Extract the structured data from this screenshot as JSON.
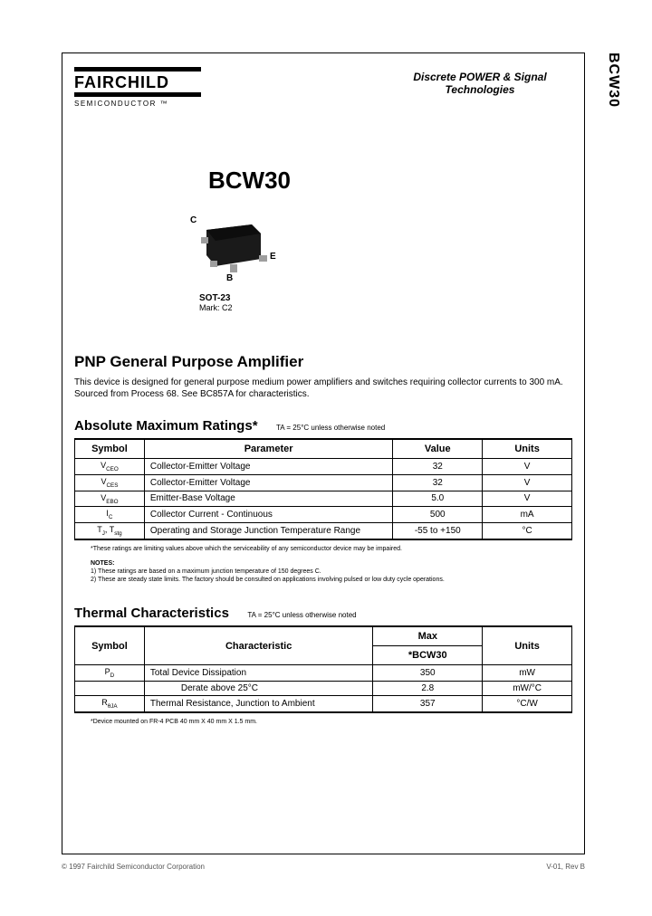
{
  "side_label": "BCW30",
  "logo": {
    "name": "FAIRCHILD",
    "sub": "SEMICONDUCTOR ™"
  },
  "header_right_line1": "Discrete POWER & Signal",
  "header_right_line2": "Technologies",
  "part_number": "BCW30",
  "package": {
    "pin_c": "C",
    "pin_e": "E",
    "pin_b": "B",
    "name": "SOT-23",
    "mark": "Mark: C2",
    "body_color": "#1a1a1a",
    "pin_color": "#9e9e9e"
  },
  "product_title": "PNP General Purpose Amplifier",
  "description": "This device is designed for general purpose medium power amplifiers and switches requiring collector currents to 300 mA. Sourced from Process 68. See BC857A for characteristics.",
  "amr": {
    "title": "Absolute Maximum Ratings*",
    "condition": "TA = 25°C unless otherwise noted",
    "headers": [
      "Symbol",
      "Parameter",
      "Value",
      "Units"
    ],
    "rows": [
      {
        "sym": "V<sub>CEO</sub>",
        "param": "Collector-Emitter Voltage",
        "val": "32",
        "units": "V"
      },
      {
        "sym": "V<sub>CES</sub>",
        "param": "Collector-Emitter Voltage",
        "val": "32",
        "units": "V"
      },
      {
        "sym": "V<sub>EBO</sub>",
        "param": "Emitter-Base Voltage",
        "val": "5.0",
        "units": "V"
      },
      {
        "sym": "I<sub>C</sub>",
        "param": "Collector Current - Continuous",
        "val": "500",
        "units": "mA"
      },
      {
        "sym": "T<sub>J</sub>, T<sub>stg</sub>",
        "param": "Operating and Storage Junction Temperature Range",
        "val": "-55 to +150",
        "units": "°C"
      }
    ],
    "footnote": "*These ratings are limiting values above which the serviceability of any semiconductor device may be impaired.",
    "notes_title": "NOTES:",
    "note1": "1) These ratings are based on a maximum junction temperature of 150 degrees C.",
    "note2": "2) These are steady state limits. The factory should be consulted on applications involving pulsed or low duty cycle operations."
  },
  "thermal": {
    "title": "Thermal Characteristics",
    "condition": "TA = 25°C unless otherwise noted",
    "headers": [
      "Symbol",
      "Characteristic",
      "Max",
      "Units"
    ],
    "sub_header": "*BCW30",
    "rows": [
      {
        "sym": "P<sub>D</sub>",
        "param": "Total Device Dissipation",
        "max": "350",
        "units": "mW"
      },
      {
        "sym": "",
        "param": "Derate above 25°C",
        "max": "2.8",
        "units": "mW/°C"
      },
      {
        "sym": "R<sub>θJA</sub>",
        "param": "Thermal Resistance, Junction to Ambient",
        "max": "357",
        "units": "°C/W"
      }
    ],
    "footnote": "*Device mounted on FR-4 PCB 40 mm X 40 mm X 1.5 mm."
  },
  "footer_left": "© 1997 Fairchild Semiconductor Corporation",
  "footer_right": "V-01, Rev B"
}
